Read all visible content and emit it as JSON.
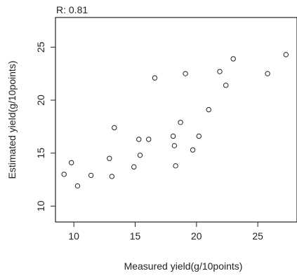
{
  "chart_data": {
    "type": "scatter",
    "title": "R: 0.81",
    "xlabel": "Measured yield(g/10points)",
    "ylabel": "Estimated yield(g/10points)",
    "xlim": [
      8.5,
      28.2
    ],
    "ylim": [
      8.5,
      27.8
    ],
    "xticks": [
      10,
      15,
      20,
      25
    ],
    "yticks": [
      10,
      15,
      20,
      25
    ],
    "grid": false,
    "marker": "open-circle",
    "x": [
      9.2,
      9.8,
      10.3,
      11.4,
      12.9,
      13.1,
      13.3,
      14.9,
      15.3,
      15.4,
      16.1,
      16.6,
      18.1,
      18.2,
      18.3,
      18.7,
      19.1,
      19.7,
      20.2,
      21.0,
      21.9,
      22.4,
      23.0,
      25.8,
      27.3
    ],
    "y": [
      13.0,
      14.1,
      11.9,
      12.9,
      14.5,
      12.8,
      17.4,
      13.7,
      16.3,
      14.8,
      16.3,
      22.1,
      16.6,
      15.7,
      13.8,
      17.9,
      22.5,
      15.3,
      16.6,
      19.1,
      22.7,
      21.4,
      23.9,
      22.5,
      24.3
    ]
  }
}
